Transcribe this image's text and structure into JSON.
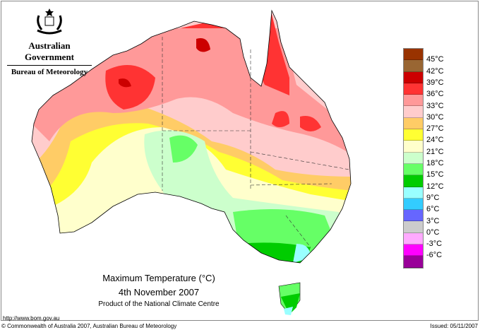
{
  "header": {
    "government": "Australian Government",
    "bureau": "Bureau of Meteorology",
    "logo_icon": "coat-of-arms-icon"
  },
  "map": {
    "title": "Maximum Temperature (°C)",
    "date": "4th November 2007",
    "product": "Product of the National Climate Centre"
  },
  "legend": [
    {
      "label": "45°C",
      "color": "#993300"
    },
    {
      "label": "42°C",
      "color": "#996633"
    },
    {
      "label": "39°C",
      "color": "#cc0000"
    },
    {
      "label": "36°C",
      "color": "#ff3333"
    },
    {
      "label": "33°C",
      "color": "#ff9999"
    },
    {
      "label": "30°C",
      "color": "#ffcccc"
    },
    {
      "label": "27°C",
      "color": "#ffcc66"
    },
    {
      "label": "24°C",
      "color": "#ffff33"
    },
    {
      "label": "21°C",
      "color": "#ffffcc"
    },
    {
      "label": "18°C",
      "color": "#ccffcc"
    },
    {
      "label": "15°C",
      "color": "#66ff66"
    },
    {
      "label": "12°C",
      "color": "#00cc00"
    },
    {
      "label": "9°C",
      "color": "#99ffff"
    },
    {
      "label": "6°C",
      "color": "#33ccff"
    },
    {
      "label": "3°C",
      "color": "#6666ff"
    },
    {
      "label": "0°C",
      "color": "#cccccc"
    },
    {
      "label": "-3°C",
      "color": "#ffaaff"
    },
    {
      "label": "-6°C",
      "color": "#ff00ff"
    },
    {
      "label": "",
      "color": "#990099"
    }
  ],
  "footer": {
    "url": "http://www.bom.gov.au",
    "copyright": "© Commonwealth of Australia 2007, Australian Bureau of Meteorology",
    "issued": "Issued: 05/11/2007"
  }
}
